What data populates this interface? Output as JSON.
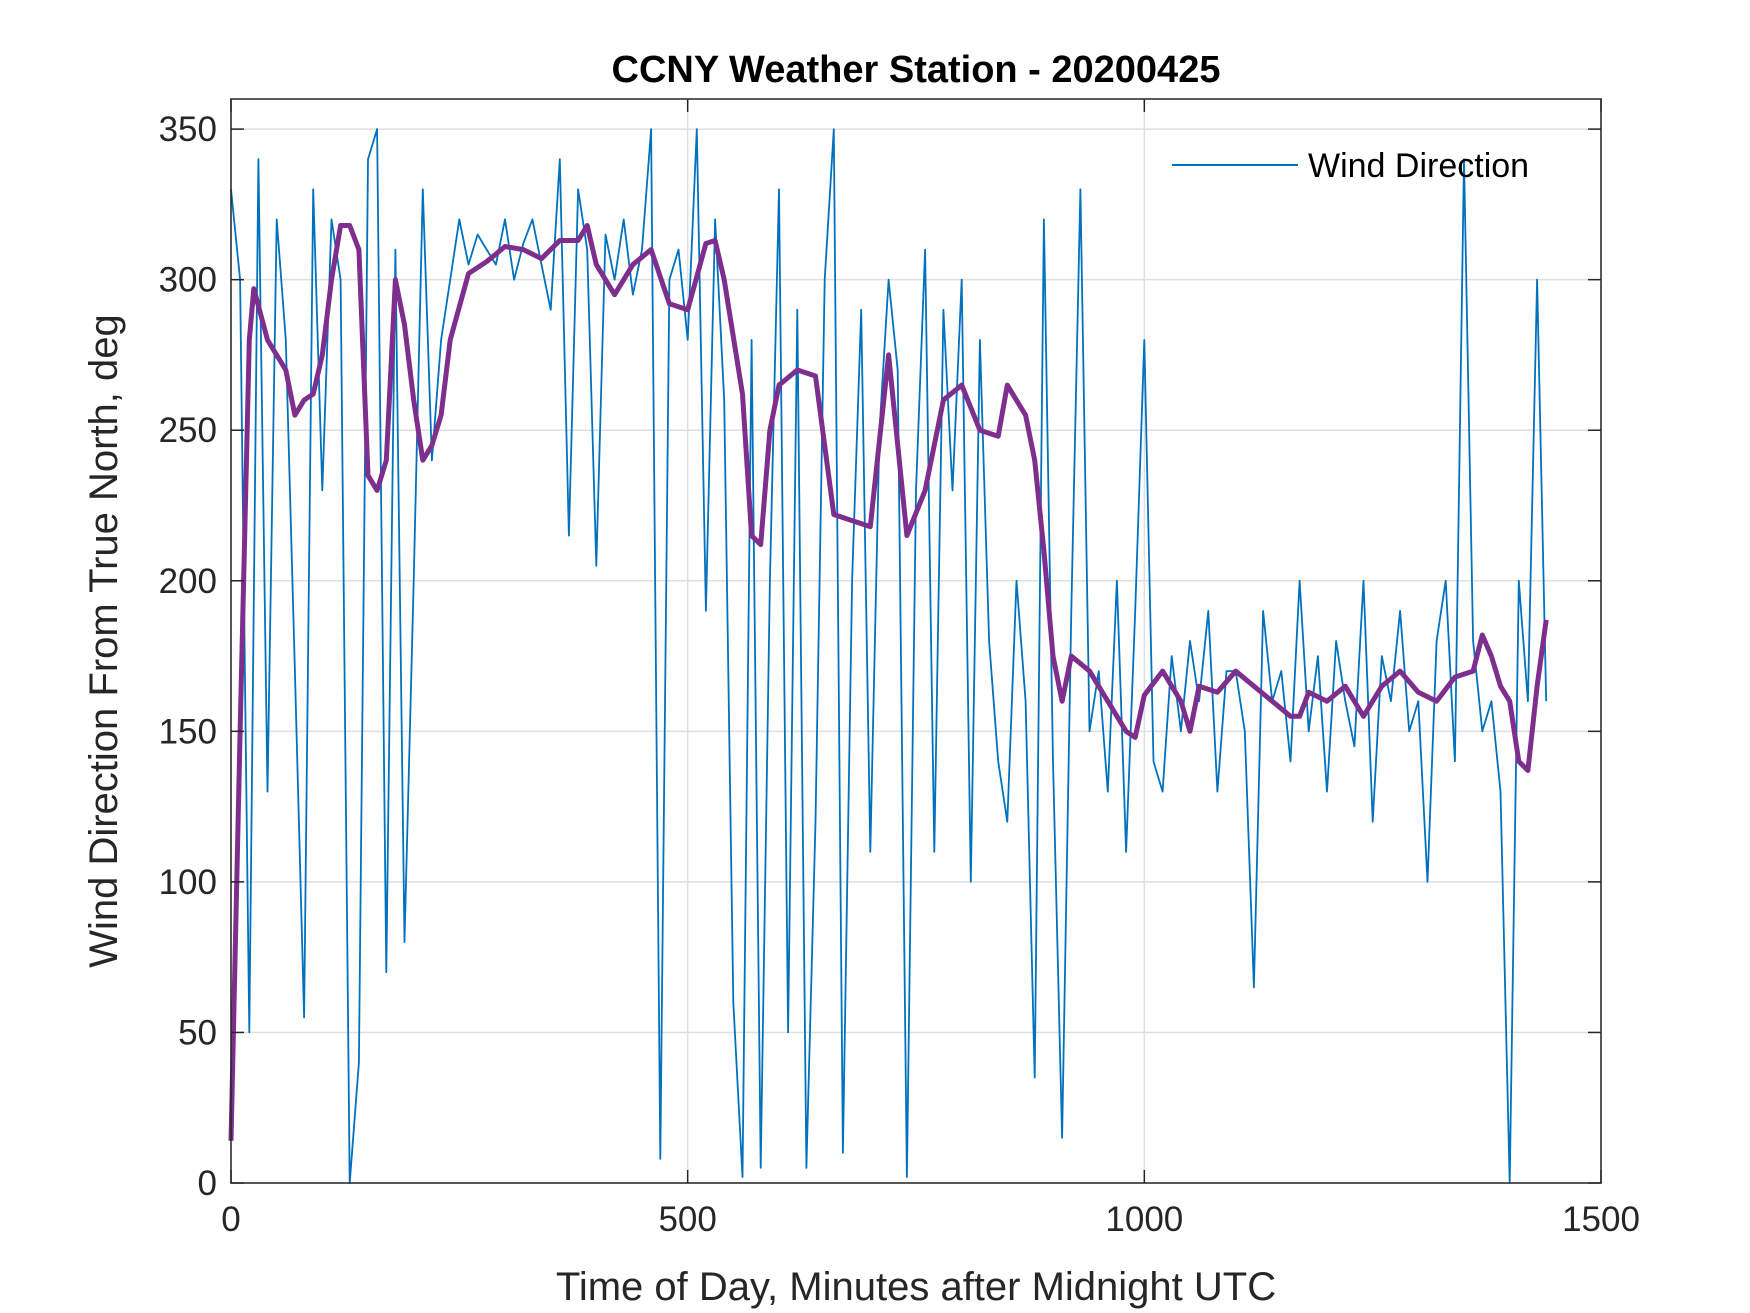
{
  "chart_data": {
    "type": "line",
    "title": "CCNY Weather Station - 20200425",
    "xlabel": "Time of Day, Minutes after Midnight UTC",
    "ylabel": "Wind Direction From True North, deg",
    "xlim": [
      0,
      1500
    ],
    "ylim": [
      0,
      360
    ],
    "xticks": [
      0,
      500,
      1000,
      1500
    ],
    "yticks": [
      0,
      50,
      100,
      150,
      200,
      250,
      300,
      350
    ],
    "grid": true,
    "legend": {
      "placement": "top-right",
      "entries": [
        "Wind Direction"
      ]
    },
    "series": [
      {
        "name": "Wind Direction",
        "color": "#0072BD",
        "x_step": 10,
        "values": [
          330,
          300,
          50,
          340,
          130,
          320,
          280,
          170,
          55,
          330,
          230,
          320,
          300,
          0,
          40,
          340,
          350,
          70,
          310,
          80,
          200,
          330,
          240,
          280,
          300,
          320,
          305,
          315,
          310,
          305,
          320,
          300,
          312,
          320,
          305,
          290,
          340,
          215,
          330,
          310,
          205,
          315,
          300,
          320,
          295,
          310,
          350,
          8,
          300,
          310,
          280,
          350,
          190,
          320,
          260,
          60,
          2,
          280,
          5,
          200,
          330,
          50,
          290,
          5,
          120,
          300,
          350,
          10,
          200,
          290,
          110,
          250,
          300,
          270,
          2,
          230,
          310,
          110,
          290,
          230,
          300,
          100,
          280,
          180,
          140,
          120,
          200,
          160,
          35,
          320,
          140,
          15,
          190,
          330,
          150,
          170,
          130,
          200,
          110,
          190,
          280,
          140,
          130,
          175,
          150,
          180,
          160,
          190,
          130,
          170,
          170,
          150,
          65,
          190,
          160,
          170,
          140,
          200,
          150,
          175,
          130,
          180,
          160,
          145,
          200,
          120,
          175,
          160,
          190,
          150,
          160,
          100,
          180,
          200,
          140,
          340,
          180,
          150,
          160,
          130,
          0,
          200,
          160,
          300,
          160
        ]
      },
      {
        "color": "#7E2F8E",
        "x": [
          0,
          10,
          20,
          25,
          40,
          60,
          70,
          80,
          90,
          100,
          110,
          120,
          130,
          140,
          150,
          160,
          170,
          180,
          190,
          200,
          210,
          220,
          230,
          240,
          260,
          280,
          300,
          320,
          340,
          360,
          380,
          390,
          400,
          420,
          440,
          460,
          480,
          500,
          520,
          530,
          540,
          560,
          570,
          580,
          590,
          600,
          620,
          640,
          660,
          680,
          700,
          720,
          740,
          760,
          780,
          800,
          820,
          840,
          850,
          870,
          880,
          890,
          900,
          910,
          920,
          940,
          960,
          980,
          990,
          1000,
          1020,
          1040,
          1050,
          1060,
          1080,
          1100,
          1120,
          1140,
          1160,
          1170,
          1180,
          1200,
          1220,
          1240,
          1260,
          1280,
          1300,
          1320,
          1340,
          1360,
          1370,
          1380,
          1390,
          1400,
          1410,
          1420,
          1430,
          1440
        ],
        "values": [
          14,
          150,
          280,
          297,
          280,
          270,
          255,
          260,
          262,
          275,
          300,
          318,
          318,
          310,
          235,
          230,
          240,
          300,
          285,
          260,
          240,
          245,
          255,
          280,
          302,
          306,
          311,
          310,
          307,
          313,
          313,
          318,
          305,
          295,
          305,
          310,
          292,
          290,
          312,
          313,
          300,
          262,
          215,
          212,
          250,
          265,
          270,
          268,
          222,
          220,
          218,
          275,
          215,
          230,
          260,
          265,
          250,
          248,
          265,
          255,
          240,
          210,
          175,
          160,
          175,
          170,
          160,
          150,
          148,
          162,
          170,
          160,
          150,
          165,
          163,
          170,
          165,
          160,
          155,
          155,
          163,
          160,
          165,
          155,
          165,
          170,
          163,
          160,
          168,
          170,
          182,
          175,
          165,
          160,
          140,
          137,
          165,
          187
        ]
      }
    ]
  }
}
